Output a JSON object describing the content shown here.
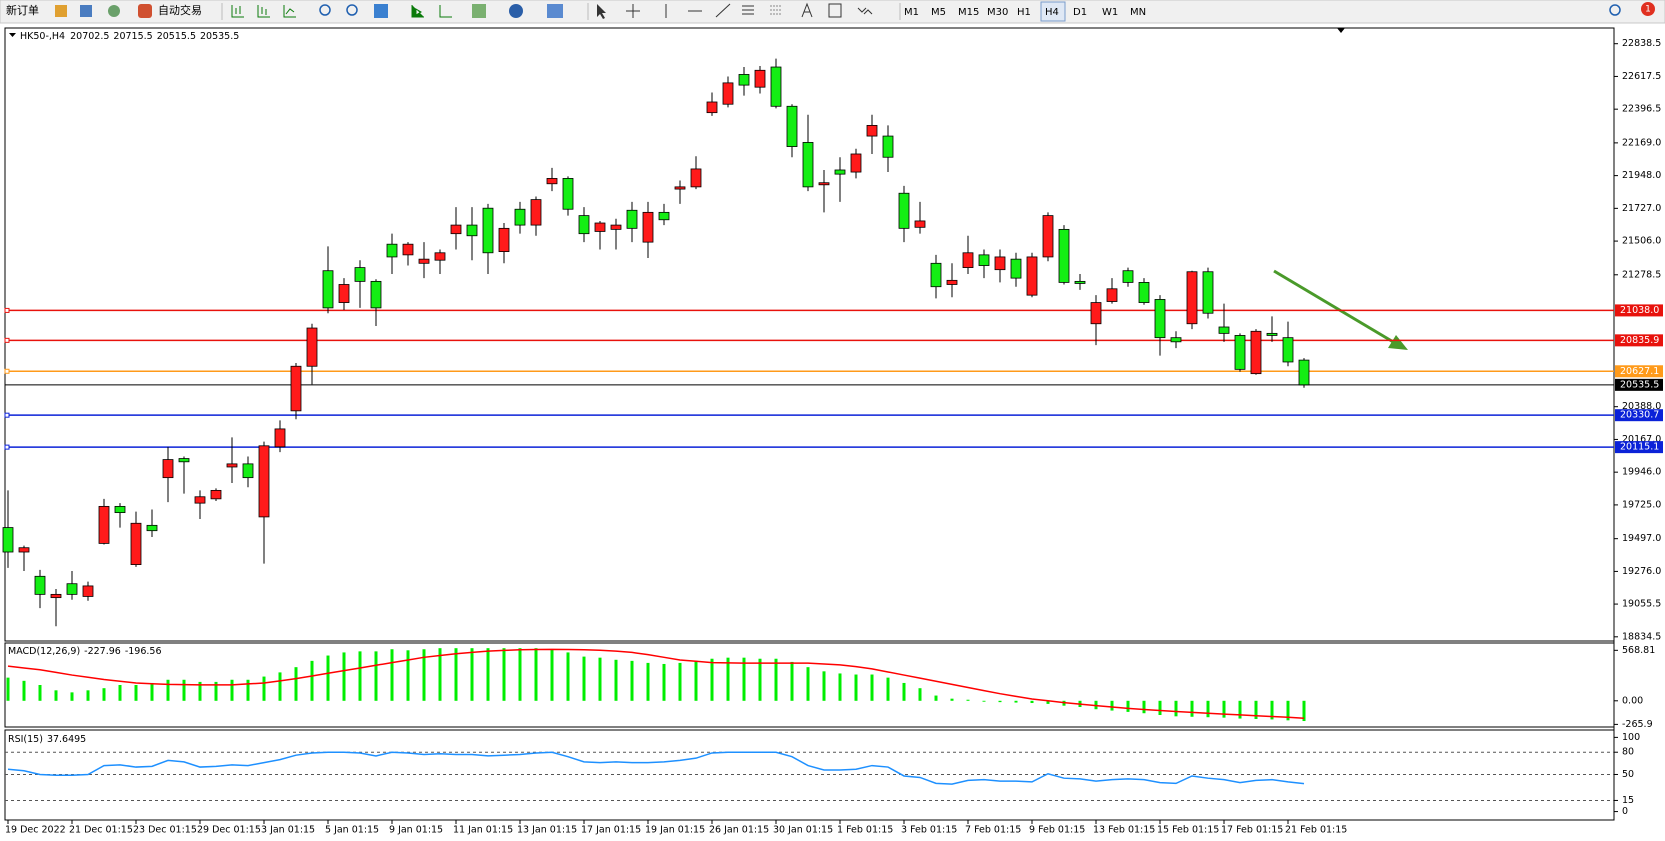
{
  "toolbar": {
    "new_order": "新订单",
    "auto_trading": "自动交易",
    "timeframes": [
      "M1",
      "M5",
      "M15",
      "M30",
      "H1",
      "H4",
      "D1",
      "W1",
      "MN"
    ],
    "selected_timeframe": 5,
    "alerts": 1
  },
  "chart_data": [
    {
      "type": "candlestick",
      "title": "HK50-,H4",
      "categories": [
        "19 Dec 2022",
        null,
        null,
        null,
        "21 Dec 01:15",
        null,
        null,
        null,
        "23 Dec 01:15",
        null,
        null,
        null,
        "29 Dec 01:15",
        null,
        null,
        null,
        "3 Jan 01:15",
        null,
        null,
        null,
        "5 Jan 01:15",
        null,
        null,
        null,
        "9 Jan 01:15",
        null,
        null,
        null,
        "11 Jan 01:15",
        null,
        null,
        null,
        "13 Jan 01:15",
        null,
        null,
        null,
        "17 Jan 01:15",
        null,
        null,
        null,
        "19 Jan 01:15",
        null,
        null,
        null,
        "26 Jan 01:15",
        null,
        null,
        null,
        "30 Jan 01:15",
        null,
        null,
        null,
        "1 Feb 01:15",
        null,
        null,
        null,
        "3 Feb 01:15",
        null,
        null,
        null,
        "7 Feb 01:15",
        null,
        null,
        null,
        "9 Feb 01:15",
        null,
        null,
        null,
        "13 Feb 01:15",
        null,
        null,
        null,
        "15 Feb 01:15",
        null,
        null,
        null,
        "17 Feb 01:15",
        null,
        null,
        null,
        "21 Feb 01:15",
        null
      ],
      "open": [
        19572,
        19407,
        19243,
        19099,
        19193,
        19107,
        19465,
        19715,
        19322,
        19587,
        19909,
        20038,
        19737,
        19766,
        19981,
        20002,
        19644,
        20117,
        20360,
        20661,
        21306,
        21091,
        21327,
        21234,
        21485,
        21413,
        21356,
        21377,
        21556,
        21614,
        21728,
        21435,
        21721,
        21614,
        21893,
        21929,
        21678,
        21571,
        21585,
        21714,
        21499,
        21700,
        21857,
        21872,
        22373,
        22430,
        22631,
        22545,
        22681,
        22416,
        22172,
        21886,
        21986,
        21972,
        22215,
        22215,
        21829,
        21599,
        21356,
        21213,
        21327,
        21413,
        21313,
        21384,
        21141,
        21399,
        21585,
        21234,
        20948,
        21098,
        21306,
        21227,
        21112,
        20854,
        20948,
        21299,
        20926,
        20869,
        20611,
        20883,
        20854,
        20702.5
      ],
      "high": [
        19823,
        19450,
        19286,
        19157,
        19279,
        19207,
        19766,
        19737,
        19680,
        19694,
        20117,
        20052,
        19823,
        19837,
        20181,
        20052,
        20152,
        20296,
        20683,
        20948,
        21470,
        21256,
        21377,
        21248,
        21556,
        21499,
        21499,
        21449,
        21735,
        21735,
        21757,
        21628,
        21771,
        21807,
        22000,
        21943,
        21735,
        21642,
        21657,
        21771,
        21771,
        21757,
        21915,
        22079,
        22509,
        22617,
        22681,
        22688,
        22738,
        22430,
        22359,
        21986,
        22072,
        22129,
        22359,
        22287,
        21879,
        21771,
        21413,
        21356,
        21542,
        21449,
        21449,
        21427,
        21427,
        21700,
        21614,
        21284,
        21141,
        21256,
        21327,
        21256,
        21141,
        20897,
        21306,
        21327,
        21084,
        20883,
        20912,
        20998,
        20962,
        20715.5
      ],
      "low": [
        19300,
        19279,
        19028,
        18906,
        19085,
        19078,
        19458,
        19572,
        19307,
        19508,
        19744,
        19801,
        19630,
        19751,
        19873,
        19844,
        19329,
        20081,
        20303,
        20539,
        21019,
        21041,
        21055,
        20933,
        21284,
        21341,
        21256,
        21284,
        21449,
        21377,
        21284,
        21356,
        21556,
        21542,
        21843,
        21678,
        21499,
        21449,
        21449,
        21499,
        21392,
        21614,
        21757,
        21857,
        22351,
        22409,
        22488,
        22502,
        22402,
        22072,
        21843,
        21700,
        21771,
        21929,
        22094,
        21972,
        21499,
        21556,
        21119,
        21127,
        21284,
        21256,
        21227,
        21198,
        21127,
        21370,
        21213,
        21177,
        20804,
        21084,
        21198,
        21076,
        20733,
        20783,
        20912,
        20983,
        20826,
        20625,
        20604,
        20826,
        20661,
        20515.5
      ],
      "close": [
        19407,
        19436,
        19121,
        19121,
        19121,
        19178,
        19715,
        19673,
        19601,
        19551,
        20031,
        20016,
        19780,
        19823,
        20002,
        19909,
        20124,
        20238,
        20661,
        20919,
        21055,
        21213,
        21234,
        21055,
        21399,
        21485,
        21384,
        21427,
        21614,
        21542,
        21427,
        21592,
        21614,
        21786,
        21929,
        21721,
        21556,
        21628,
        21614,
        21592,
        21700,
        21650,
        21872,
        21993,
        22445,
        22574,
        22559,
        22659,
        22416,
        22144,
        21872,
        21900,
        21958,
        22094,
        22287,
        22072,
        21592,
        21642,
        21198,
        21241,
        21427,
        21341,
        21399,
        21256,
        21399,
        21678,
        21227,
        21220,
        21091,
        21184,
        21227,
        21091,
        20854,
        20826,
        21299,
        21019,
        20883,
        20640,
        20897,
        20869,
        20690,
        20535.5
      ],
      "up_color": "#ff1a1a",
      "down_color": "#14ee14",
      "ylim": [
        18813,
        22931
      ],
      "yticks": [
        22838.5,
        22617.5,
        22396.5,
        {
          "value": 22169,
          "label": "22169.0"
        },
        {
          "value": 21948,
          "label": "21948.0"
        },
        {
          "value": 21727,
          "label": "21727.0"
        },
        {
          "value": 21506,
          "label": "21506.0"
        },
        21278.5,
        {
          "value": 20388,
          "label": "20388.0"
        },
        {
          "value": 20167,
          "label": "20167.0"
        },
        {
          "value": 19946,
          "label": "19946.0"
        },
        {
          "value": 19725,
          "label": "19725.0"
        },
        {
          "value": 19497,
          "label": "19497.0"
        },
        {
          "value": 19276,
          "label": "19276.0"
        },
        19055.5,
        18834.5
      ],
      "grid": false,
      "hlines": [
        {
          "price": 21038,
          "label": "21038.0",
          "color": "#e8120c"
        },
        {
          "price": 20835.9,
          "color": "#e8120c"
        },
        {
          "price": 20627.1,
          "color": "#ff9a1a"
        },
        {
          "price": 20330.7,
          "color": "#0b22d8"
        },
        {
          "price": 20115.1,
          "color": "#0b22d8"
        }
      ],
      "current_price_color": "#000000"
    },
    {
      "type": "macd",
      "title": "MACD(12,26,9)",
      "series": [
        {
          "style": "histogram",
          "color": "#00ee00",
          "values": [
            261,
            225,
            178,
            118,
            95,
            118,
            142,
            178,
            178,
            201,
            237,
            237,
            213,
            213,
            237,
            237,
            273,
            320,
            379,
            450,
            510,
            545,
            557,
            557,
            581,
            569,
            581,
            593,
            593,
            593,
            593,
            593,
            593,
            593,
            581,
            545,
            498,
            486,
            462,
            450,
            427,
            415,
            427,
            450,
            474,
            486,
            486,
            474,
            474,
            438,
            379,
            332,
            308,
            296,
            296,
            261,
            201,
            142,
            59,
            24,
            12,
            -10,
            -15,
            -20,
            -25,
            -35,
            -55,
            -70,
            -95,
            -110,
            -125,
            -140,
            -160,
            -175,
            -180,
            -185,
            -190,
            -200,
            -205,
            -210,
            -220,
            -227.96
          ]
        },
        {
          "style": "line",
          "color": "#ff0000",
          "values": [
            391,
            370,
            350,
            320,
            290,
            265,
            240,
            220,
            200,
            192,
            185,
            182,
            180,
            180,
            180,
            190,
            200,
            225,
            250,
            280,
            310,
            340,
            370,
            400,
            430,
            460,
            490,
            510,
            530,
            545,
            560,
            568,
            575,
            578,
            580,
            578,
            575,
            570,
            560,
            545,
            520,
            490,
            460,
            445,
            430,
            428,
            425,
            425,
            425,
            425,
            425,
            415,
            405,
            385,
            360,
            325,
            290,
            255,
            220,
            185,
            150,
            115,
            80,
            50,
            20,
            0,
            -20,
            -38,
            -55,
            -70,
            -85,
            -98,
            -110,
            -120,
            -130,
            -140,
            -150,
            -159,
            -168,
            -177,
            -185,
            -196.56
          ]
        }
      ],
      "ylim": [
        -284,
        640
      ],
      "yticks": [
        568.81,
        {
          "value": 0,
          "label": "0.00"
        },
        -265.9
      ]
    },
    {
      "type": "line",
      "title": "RSI(15)",
      "color": "#1e90ff",
      "values": [
        57,
        55,
        50,
        49,
        49,
        50,
        62,
        63,
        60,
        61,
        69,
        67,
        60,
        61,
        63,
        62,
        66,
        70,
        76,
        79,
        80,
        80,
        79,
        75,
        80,
        79,
        77,
        78,
        77,
        77,
        75,
        76,
        77,
        79,
        80,
        74,
        67,
        66,
        67,
        66,
        66,
        67,
        69,
        72,
        79,
        80,
        80,
        80,
        80,
        74,
        62,
        56,
        56,
        57,
        62,
        60,
        48,
        46,
        38,
        37,
        42,
        43,
        41,
        41,
        40,
        51,
        45,
        44,
        41,
        43,
        44,
        43,
        39,
        38,
        48,
        45,
        43,
        39,
        42,
        43,
        40,
        37.6495
      ],
      "ylim": [
        -10,
        108.6
      ],
      "yticks": [
        100,
        80,
        50,
        15,
        0
      ],
      "levels": [
        80,
        50,
        15
      ]
    }
  ]
}
